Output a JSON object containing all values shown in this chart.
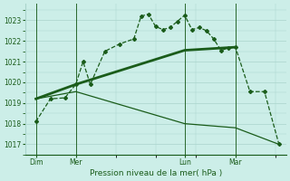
{
  "background_color": "#cceee8",
  "grid_color": "#aad4cc",
  "line_color": "#1a5c1a",
  "xlabel": "Pression niveau de la mer( hPa )",
  "ylim": [
    1016.5,
    1023.8
  ],
  "yticks": [
    1017,
    1018,
    1019,
    1020,
    1021,
    1022,
    1023
  ],
  "xlim": [
    0,
    36
  ],
  "day_labels": [
    "Dim",
    "Mer",
    "Lun",
    "Mar"
  ],
  "day_positions": [
    1.5,
    7,
    22,
    29
  ],
  "line_zigzag": {
    "x": [
      1.5,
      3.5,
      5.5,
      7,
      8,
      9,
      11,
      13,
      15,
      16,
      17,
      18,
      19,
      20,
      21,
      22,
      23,
      24,
      25,
      26,
      27,
      28,
      29,
      31,
      33,
      35
    ],
    "y": [
      1018.1,
      1019.2,
      1019.25,
      1019.9,
      1021.0,
      1019.9,
      1021.5,
      1021.85,
      1022.1,
      1023.2,
      1023.3,
      1022.7,
      1022.55,
      1022.65,
      1022.95,
      1023.25,
      1022.55,
      1022.65,
      1022.5,
      1022.1,
      1021.55,
      1021.65,
      1021.7,
      1019.55,
      1019.55,
      1017.0
    ]
  },
  "line_rising": {
    "x": [
      1.5,
      7,
      22,
      29
    ],
    "y": [
      1019.2,
      1019.9,
      1021.55,
      1021.7
    ]
  },
  "line_falling": {
    "x": [
      1.5,
      7,
      22,
      29,
      35
    ],
    "y": [
      1019.2,
      1019.55,
      1018.0,
      1017.8,
      1017.0
    ]
  }
}
